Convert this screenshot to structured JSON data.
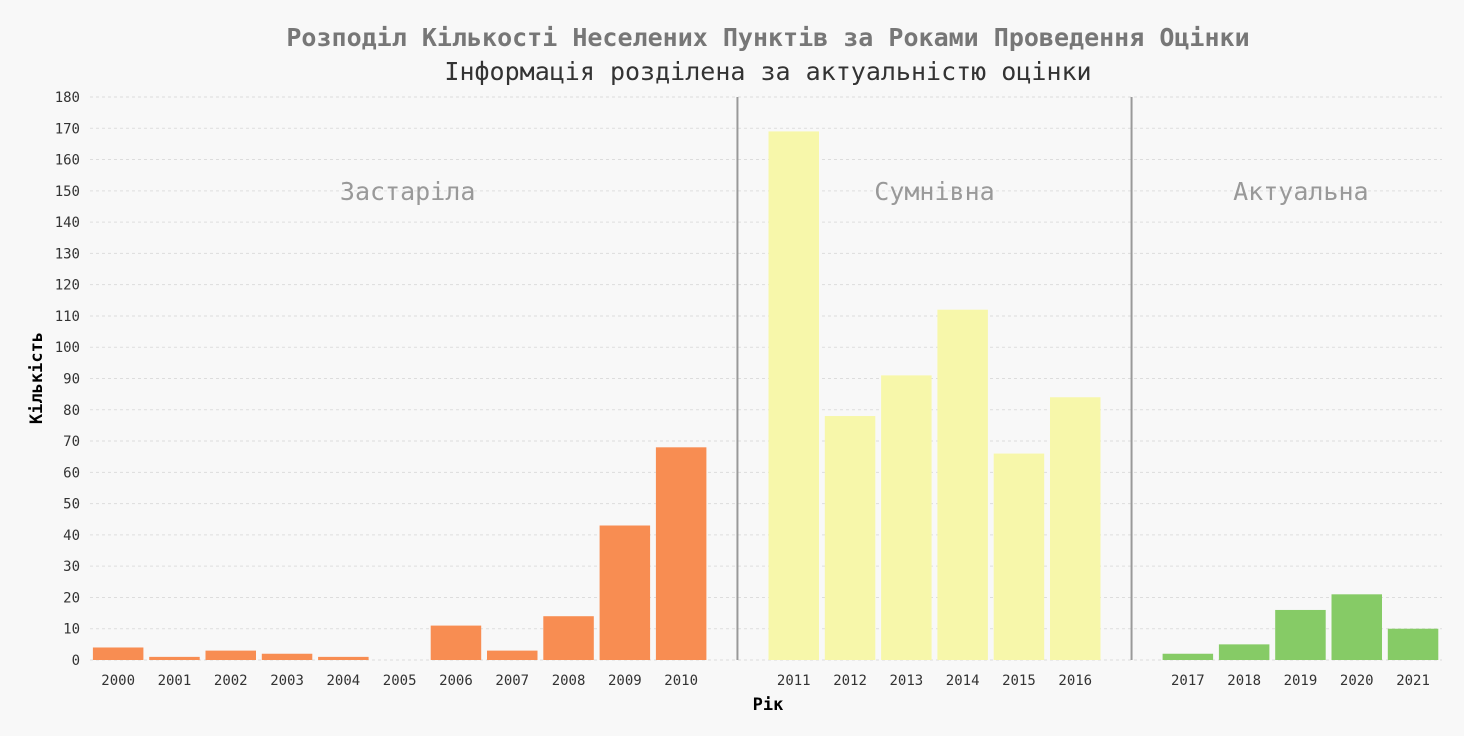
{
  "chart_data": {
    "type": "bar",
    "title": "Розподіл Кількості Неселених Пунктів за Роками Проведення Оцінки",
    "subtitle": "Інформація розділена за актуальністю оцінки",
    "xlabel": "Рік",
    "ylabel": "Кількість",
    "ylim": [
      0,
      180
    ],
    "yticks": [
      "0",
      "10",
      "20",
      "30",
      "40",
      "50",
      "60",
      "70",
      "80",
      "90",
      "100",
      "110",
      "120",
      "130",
      "140",
      "150",
      "160",
      "170",
      "180"
    ],
    "grid": true,
    "groups": [
      {
        "name": "Застаріла",
        "color": "#f88d52",
        "categories": [
          "2000",
          "2001",
          "2002",
          "2003",
          "2004",
          "2005",
          "2006",
          "2007",
          "2008",
          "2009",
          "2010"
        ],
        "values": [
          4,
          1,
          3,
          2,
          1,
          0,
          11,
          3,
          14,
          43,
          68
        ]
      },
      {
        "name": "Сумнівна",
        "color": "#f7f7aa",
        "categories": [
          "2011",
          "2012",
          "2013",
          "2014",
          "2015",
          "2016"
        ],
        "values": [
          169,
          78,
          91,
          112,
          66,
          84
        ]
      },
      {
        "name": "Актуальна",
        "color": "#86cb66",
        "categories": [
          "2017",
          "2018",
          "2019",
          "2020",
          "2021"
        ],
        "values": [
          2,
          5,
          16,
          21,
          10
        ]
      }
    ]
  }
}
